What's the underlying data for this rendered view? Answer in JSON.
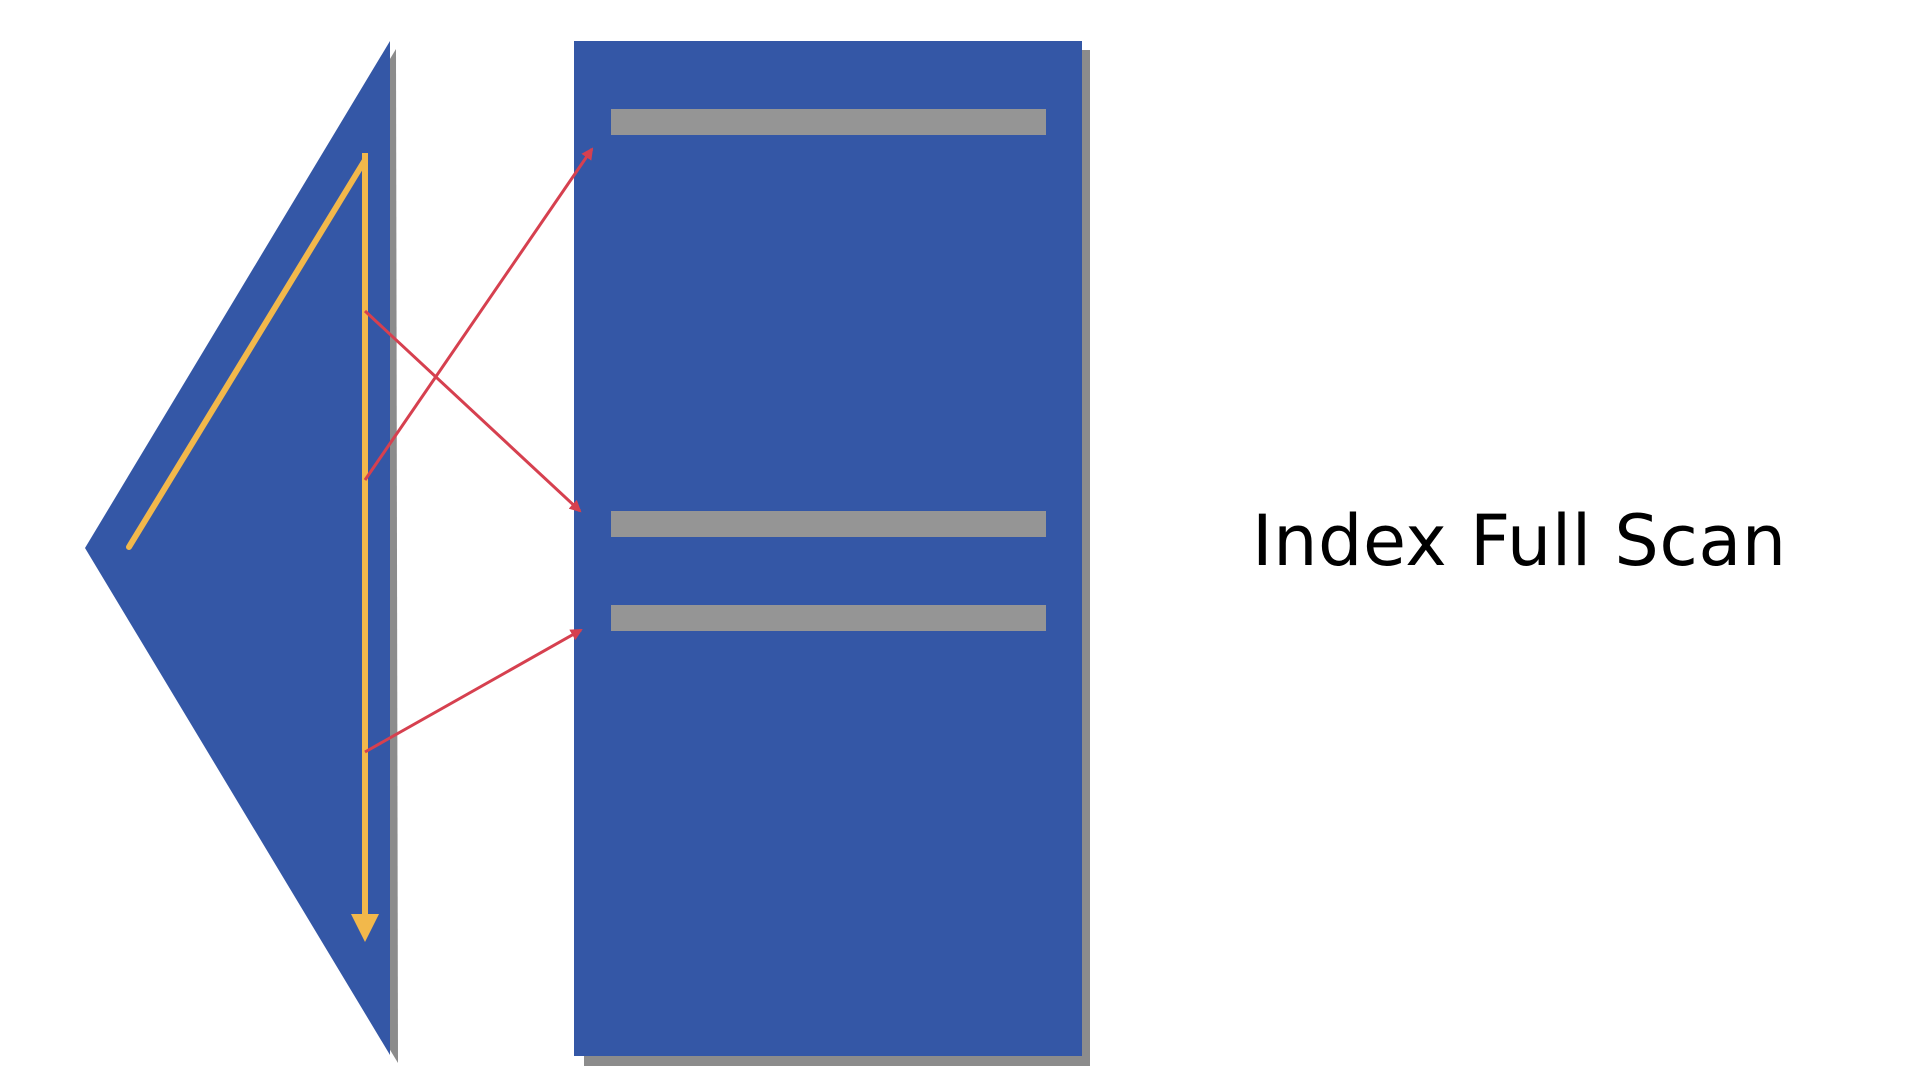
{
  "caption": "Index Full Scan",
  "colors": {
    "background": "#ffffff",
    "structure_fill": "#3457a6",
    "shadow": "#8c8c8c",
    "row_highlight": "#959595",
    "scan_arrow": "#f2b84b",
    "lookup_arrow": "#d6404f",
    "caption_text": "#000000"
  },
  "elements": {
    "index_tree": "index-tree-triangle",
    "table": "table-block",
    "highlighted_rows": 3,
    "lookup_arrows": 3
  }
}
